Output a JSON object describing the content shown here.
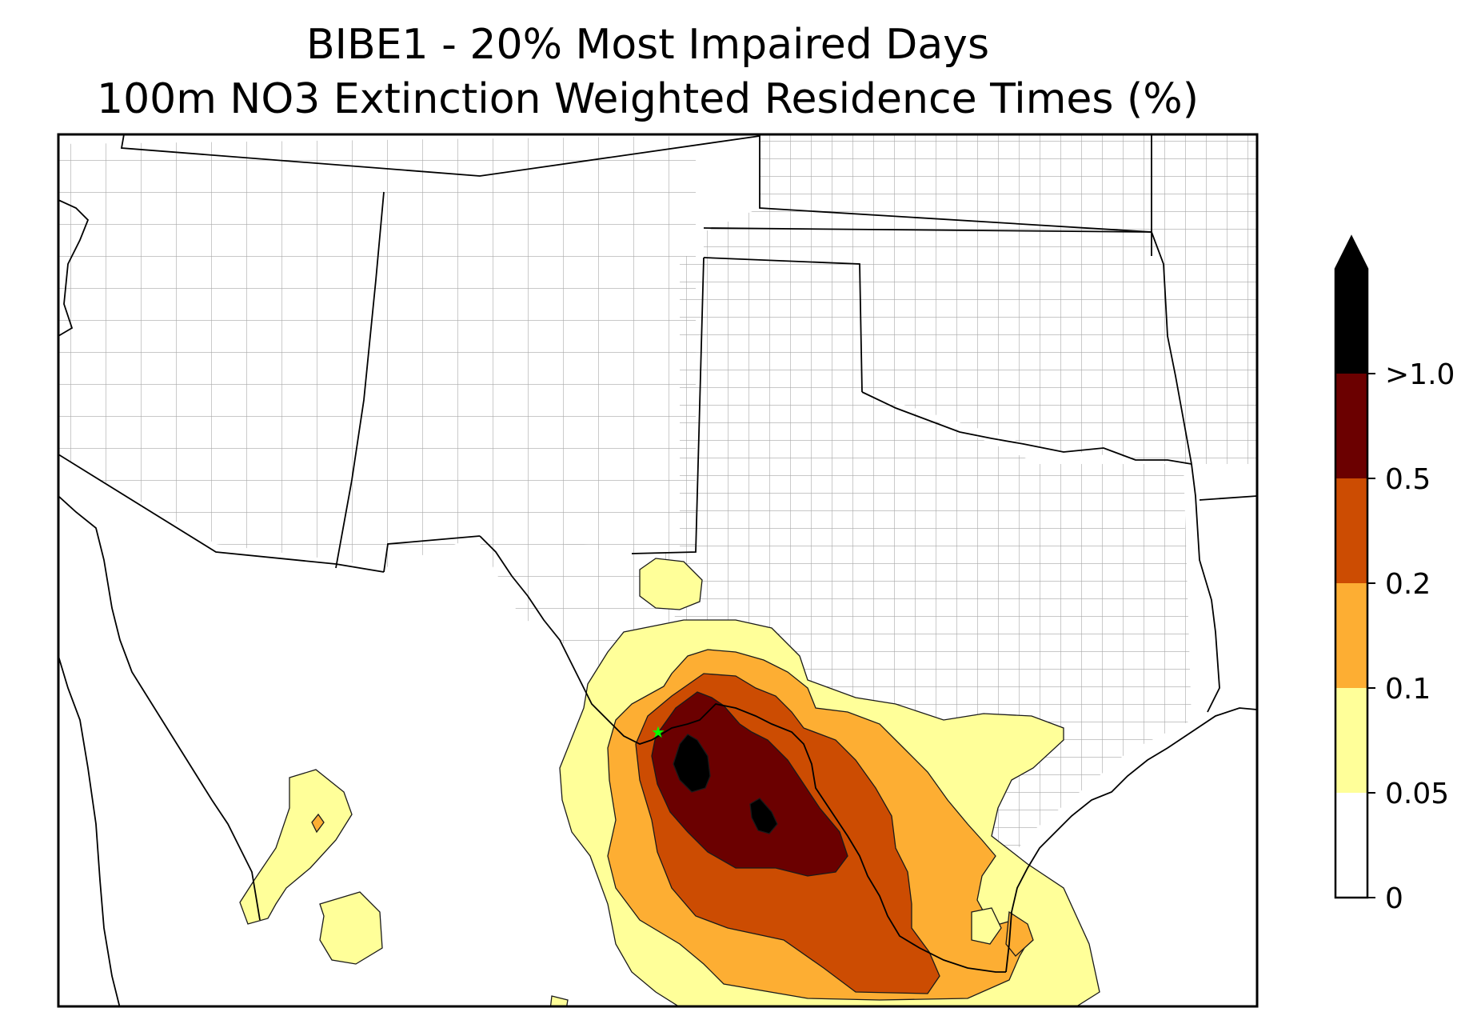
{
  "title": {
    "line1": "BIBE1 - 20% Most Impaired Days",
    "line2": "100m NO3 Extinction Weighted Residence Times (%)"
  },
  "colorbar": {
    "extend": "max",
    "bins": [
      {
        "from": "0",
        "to": "0.05",
        "color": "#ffffff"
      },
      {
        "from": "0.05",
        "to": "0.1",
        "color": "#ffff99"
      },
      {
        "from": "0.1",
        "to": "0.2",
        "color": "#fdae33"
      },
      {
        "from": "0.2",
        "to": "0.5",
        "color": "#cc4c02"
      },
      {
        "from": "0.5",
        "to": ">1.0",
        "color": "#6b0000"
      },
      {
        "from": ">1.0",
        "to": "max",
        "color": "#000000"
      }
    ],
    "tick_labels": [
      "0",
      "0.05",
      "0.1",
      "0.2",
      "0.5",
      ">1.0"
    ]
  },
  "map": {
    "site_marker": {
      "symbol": "star",
      "color": "#00ff00"
    },
    "state_border_color": "#000000",
    "county_border_color": "#a0a0a0"
  }
}
